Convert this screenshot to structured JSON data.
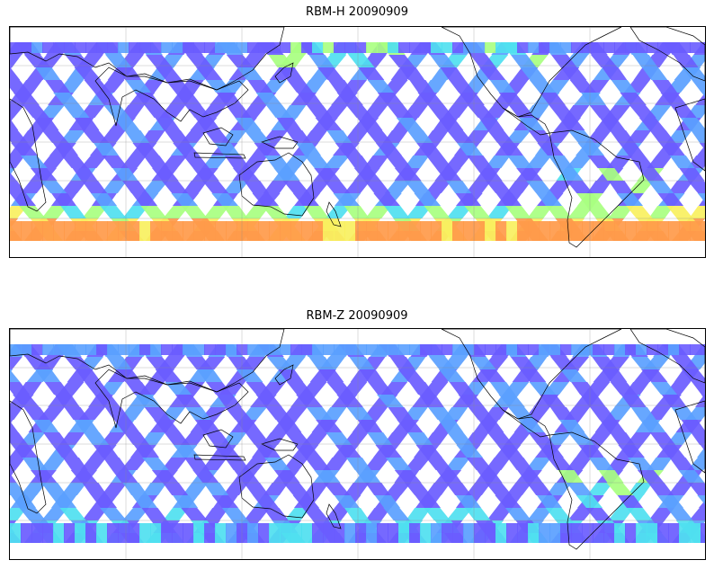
{
  "figure": {
    "panels": [
      {
        "title": "RBM-H 20090909",
        "product": "RBM-H",
        "date": "20090909",
        "warm_regions": "high",
        "projection": "plate carree, centered on Pacific",
        "gridlines": true,
        "coastlines": true
      },
      {
        "title": "RBM-Z 20090909",
        "product": "RBM-Z",
        "date": "20090909",
        "warm_regions": "low",
        "projection": "plate carree, centered on Pacific",
        "gridlines": true,
        "coastlines": true
      }
    ],
    "colormap": [
      "#6a5cff",
      "#5aa0ff",
      "#4fe0f0",
      "#a8ff80",
      "#f8f060",
      "#ff9a4a"
    ],
    "swath_pattern": "satellite ground tracks, crossing ascending and descending orbits",
    "no_colorbar": true
  }
}
